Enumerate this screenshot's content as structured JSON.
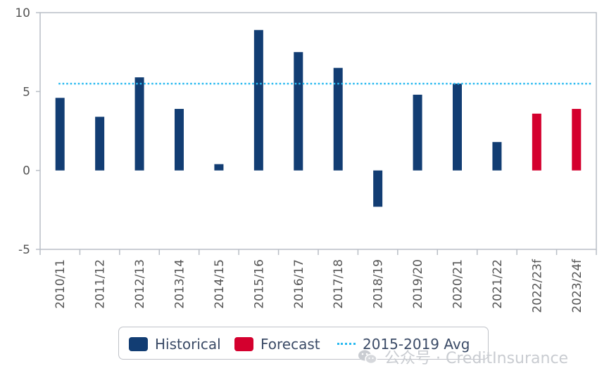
{
  "colors": {
    "historical": "#123d73",
    "forecast": "#d4002e",
    "avg": "#27b9f0",
    "axis": "#b9bec6",
    "tick_text": "#555555"
  },
  "chart_data": {
    "type": "bar",
    "categories": [
      "2010/11",
      "2011/12",
      "2012/13",
      "2013/14",
      "2014/15",
      "2015/16",
      "2016/17",
      "2017/18",
      "2018/19",
      "2019/20",
      "2020/21",
      "2021/22",
      "2022/23f",
      "2023/24f"
    ],
    "series": [
      {
        "name": "Historical",
        "color": "#123d73",
        "values": [
          4.6,
          3.4,
          5.9,
          3.9,
          0.4,
          8.9,
          7.5,
          6.5,
          -2.3,
          4.8,
          5.5,
          1.8,
          null,
          null
        ]
      },
      {
        "name": "Forecast",
        "color": "#d4002e",
        "values": [
          null,
          null,
          null,
          null,
          null,
          null,
          null,
          null,
          null,
          null,
          null,
          null,
          3.6,
          3.9
        ]
      }
    ],
    "reference_line": {
      "name": "2015-2019 Avg",
      "value": 5.5,
      "style": "dotted",
      "color": "#27b9f0"
    },
    "yticks": [
      "10",
      "5",
      "0",
      "-5"
    ],
    "ylim": [
      -5,
      10
    ],
    "legend": "bottom"
  },
  "legend": {
    "historical": "Historical",
    "forecast": "Forecast",
    "avg": "2015-2019 Avg"
  },
  "watermark": {
    "icon": "wechat-icon",
    "text": "公众号 · CreditInsurance"
  }
}
